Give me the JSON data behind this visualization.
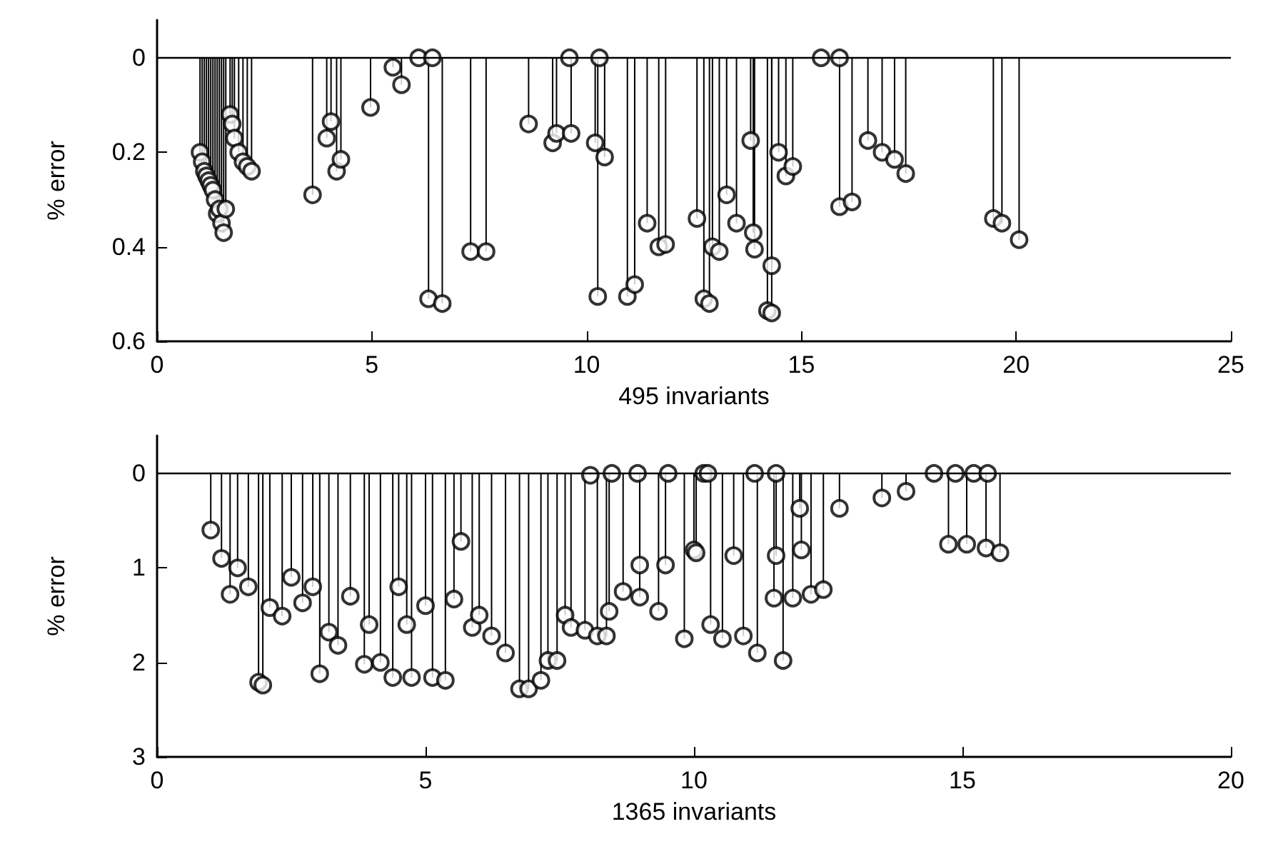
{
  "chart_data": [
    {
      "type": "lollipop",
      "xlabel": "495 invariants",
      "ylabel": "% error",
      "color": "#000000",
      "marker": "circle",
      "xlim": [
        0,
        25
      ],
      "xticks": [
        0,
        5,
        10,
        15,
        20,
        25
      ],
      "ylim": [
        0.6,
        -0.08
      ],
      "yticks": [
        0,
        0.2,
        0.4,
        0.6
      ],
      "x": [
        1.0,
        1.05,
        1.1,
        1.15,
        1.2,
        1.25,
        1.3,
        1.35,
        1.4,
        1.45,
        1.5,
        1.55,
        1.6,
        1.7,
        1.75,
        1.8,
        1.9,
        2.0,
        2.1,
        2.2,
        3.62,
        3.95,
        4.05,
        4.18,
        4.28,
        4.97,
        5.49,
        5.69,
        6.09,
        6.32,
        6.41,
        6.64,
        7.3,
        7.66,
        8.65,
        9.21,
        9.3,
        9.6,
        9.64,
        10.2,
        10.26,
        10.3,
        10.42,
        10.95,
        11.12,
        11.41,
        11.68,
        11.84,
        12.57,
        12.73,
        12.86,
        12.93,
        13.09,
        13.26,
        13.49,
        13.82,
        13.88,
        13.91,
        14.21,
        14.31,
        14.31,
        14.47,
        14.64,
        14.8,
        15.46,
        15.89,
        15.89,
        16.18,
        16.55,
        16.88,
        17.17,
        17.43,
        19.47,
        19.67,
        20.07
      ],
      "values": [
        0.2,
        0.22,
        0.24,
        0.25,
        0.26,
        0.27,
        0.28,
        0.3,
        0.33,
        0.32,
        0.35,
        0.37,
        0.32,
        0.12,
        0.14,
        0.17,
        0.2,
        0.22,
        0.23,
        0.24,
        0.29,
        0.17,
        0.135,
        0.24,
        0.215,
        0.105,
        0.02,
        0.057,
        0,
        0.51,
        0,
        0.52,
        0.41,
        0.41,
        0.14,
        0.18,
        0.16,
        0,
        0.16,
        0.18,
        0.505,
        0,
        0.21,
        0.505,
        0.48,
        0.35,
        0.4,
        0.395,
        0.34,
        0.51,
        0.52,
        0.4,
        0.41,
        0.29,
        0.35,
        0.175,
        0.37,
        0.405,
        0.535,
        0.54,
        0.44,
        0.2,
        0.25,
        0.23,
        0,
        0,
        0.315,
        0.305,
        0.175,
        0.2,
        0.215,
        0.245,
        0.34,
        0.35,
        0.385
      ]
    },
    {
      "type": "lollipop",
      "xlabel": "1365 invariants",
      "ylabel": "% error",
      "color": "#000000",
      "marker": "circle",
      "xlim": [
        0,
        20
      ],
      "xticks": [
        0,
        5,
        10,
        15,
        20
      ],
      "ylim": [
        3,
        -0.4
      ],
      "yticks": [
        0,
        1,
        2,
        3
      ],
      "x": [
        1.0,
        1.2,
        1.36,
        1.5,
        1.7,
        1.89,
        1.97,
        2.1,
        2.33,
        2.5,
        2.71,
        2.9,
        3.03,
        3.2,
        3.37,
        3.6,
        3.86,
        3.95,
        4.16,
        4.39,
        4.5,
        4.65,
        4.74,
        5.0,
        5.13,
        5.37,
        5.53,
        5.66,
        5.87,
        6.0,
        6.23,
        6.49,
        6.75,
        6.92,
        7.15,
        7.28,
        7.45,
        7.6,
        7.71,
        7.97,
        8.07,
        8.2,
        8.37,
        8.42,
        8.47,
        8.68,
        8.95,
        8.99,
        8.99,
        9.34,
        9.47,
        9.52,
        9.82,
        10.0,
        10.04,
        10.18,
        10.26,
        10.31,
        10.53,
        10.74,
        10.92,
        11.13,
        11.18,
        11.49,
        11.53,
        11.53,
        11.66,
        11.84,
        11.97,
        12.0,
        12.18,
        12.41,
        12.71,
        13.5,
        13.95,
        14.47,
        14.74,
        14.87,
        15.08,
        15.21,
        15.44,
        15.47,
        15.7
      ],
      "values": [
        0.6,
        0.9,
        1.28,
        1.0,
        1.2,
        2.21,
        2.24,
        1.42,
        1.51,
        1.1,
        1.37,
        1.2,
        2.12,
        1.68,
        1.82,
        1.3,
        2.02,
        1.6,
        2.0,
        2.16,
        1.2,
        1.6,
        2.16,
        1.4,
        2.16,
        2.19,
        1.33,
        0.72,
        1.63,
        1.5,
        1.72,
        1.9,
        2.28,
        2.28,
        2.19,
        1.98,
        1.98,
        1.5,
        1.63,
        1.66,
        0.02,
        1.72,
        1.72,
        1.46,
        0,
        1.25,
        0,
        0.97,
        1.31,
        1.46,
        0.97,
        0,
        1.75,
        0.81,
        0.84,
        0,
        0,
        1.6,
        1.75,
        0.87,
        1.72,
        0,
        1.9,
        1.32,
        0,
        0.87,
        1.98,
        1.32,
        0.37,
        0.81,
        1.28,
        1.23,
        0.37,
        0.26,
        0.19,
        0,
        0.75,
        0,
        0.75,
        0,
        0.79,
        0,
        0.84
      ]
    }
  ]
}
